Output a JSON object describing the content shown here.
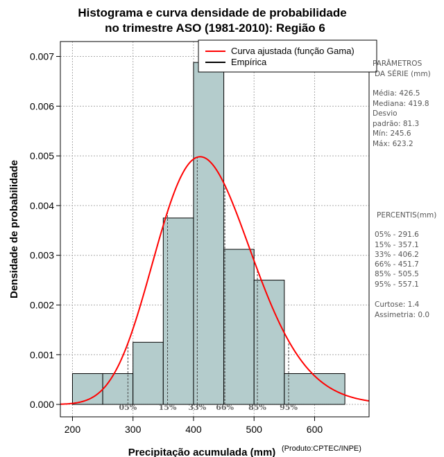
{
  "chart_data": {
    "type": "bar",
    "title": [
      "Histograma e curva densidade de probabilidade",
      "no trimestre ASO (1981-2010): Região 6"
    ],
    "xlabel": "Precipitação acumulada (mm)",
    "ylabel": "Densidade de probabilidade",
    "credit": "(Produto:CPTEC/INPE)",
    "xlim": [
      180,
      690
    ],
    "ylim": [
      -0.00025,
      0.0073
    ],
    "x_ticks": [
      200,
      300,
      400,
      500,
      600
    ],
    "y_ticks": [
      0.0,
      0.001,
      0.002,
      0.003,
      0.004,
      0.005,
      0.006,
      0.007
    ],
    "y_tick_labels": [
      "0.000",
      "0.001",
      "0.002",
      "0.003",
      "0.004",
      "0.005",
      "0.006",
      "0.007"
    ],
    "grid": true,
    "bins": [
      {
        "x0": 200,
        "x1": 250,
        "density": 0.00062
      },
      {
        "x0": 250,
        "x1": 300,
        "density": 0.00062
      },
      {
        "x0": 300,
        "x1": 350,
        "density": 0.00125
      },
      {
        "x0": 350,
        "x1": 400,
        "density": 0.00375
      },
      {
        "x0": 400,
        "x1": 450,
        "density": 0.00688
      },
      {
        "x0": 450,
        "x1": 500,
        "density": 0.00312
      },
      {
        "x0": 500,
        "x1": 550,
        "density": 0.0025
      },
      {
        "x0": 550,
        "x1": 650,
        "density": 0.00062
      }
    ],
    "series": [
      {
        "name": "Curva ajustada (função Gama)",
        "color": "#ff0000",
        "gamma_mean": 426.5,
        "gamma_sd": 81.3
      },
      {
        "name": "Empírica",
        "color": "#000000"
      }
    ],
    "legend_position": "top-right",
    "percentiles": [
      {
        "label": "05%",
        "value": 291.6
      },
      {
        "label": "15%",
        "value": 357.1
      },
      {
        "label": "33%",
        "value": 406.2
      },
      {
        "label": "66%",
        "value": 451.7
      },
      {
        "label": "85%",
        "value": 505.5
      },
      {
        "label": "95%",
        "value": 557.1
      }
    ],
    "bar_fill": "#b4cccc"
  },
  "side_panel": {
    "params_title": [
      "PARÂMETROS",
      "DA SÉRIE (mm)"
    ],
    "params_lines": [
      "Média:  426.5",
      "Mediana:  419.8",
      "Desvio",
      "padrão:  81.3",
      "Mín:  245.6",
      "Máx:  623.2"
    ],
    "percentis_title": "PERCENTIS(mm)",
    "percentis_lines": [
      "05% -  291.6",
      "15% -  357.1",
      "33% -  406.2",
      "66% -  451.7",
      "85% -  505.5",
      "95% -  557.1"
    ],
    "stats_lines": [
      "Curtose:  1.4",
      "Assimetria:  0.0"
    ]
  }
}
